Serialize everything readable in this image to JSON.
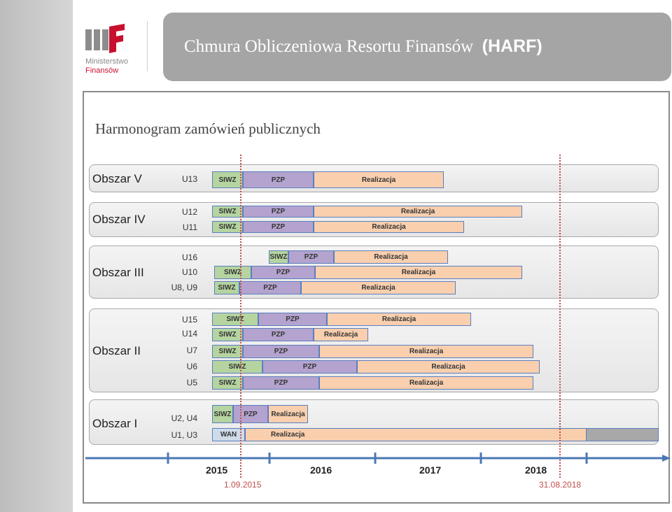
{
  "brand": {
    "line1": "Ministerstwo",
    "line2": "Finansów"
  },
  "header": {
    "title": "Chmura Obliczeniowa Resortu Finansów",
    "abbr": "(HARF)"
  },
  "page_title": "Harmonogram zamówień publicznych",
  "phases": {
    "siwz": "SIWZ",
    "pzp": "PZP",
    "realizacja": "Realizacja",
    "wan": "WAN"
  },
  "areas": [
    {
      "label": "Obszar V",
      "rows": [
        {
          "label": "U13",
          "phases": [
            "SIWZ",
            "PZP",
            "Realizacja"
          ]
        }
      ]
    },
    {
      "label": "Obszar IV",
      "rows": [
        {
          "label": "U12",
          "phases": [
            "SIWZ",
            "PZP",
            "Realizacja"
          ]
        },
        {
          "label": "U11",
          "phases": [
            "SIWZ",
            "PZP",
            "Realizacja"
          ]
        }
      ]
    },
    {
      "label": "Obszar III",
      "rows": [
        {
          "label": "U16",
          "phases": [
            "SIWZ",
            "PZP",
            "Realizacja"
          ]
        },
        {
          "label": "U10",
          "phases": [
            "SIWZ",
            "PZP",
            "Realizacja"
          ]
        },
        {
          "label": "U8, U9",
          "phases": [
            "SIWZ",
            "PZP",
            "Realizacja"
          ]
        }
      ]
    },
    {
      "label": "Obszar II",
      "rows": [
        {
          "label": "U15",
          "phases": [
            "SIWZ",
            "PZP",
            "Realizacja"
          ]
        },
        {
          "label": "U14",
          "phases": [
            "SIWZ",
            "PZP",
            "Realizacja"
          ]
        },
        {
          "label": "U7",
          "phases": [
            "SIWZ",
            "PZP",
            "Realizacja"
          ]
        },
        {
          "label": "U6",
          "phases": [
            "SIWZ",
            "PZP",
            "Realizacja"
          ]
        },
        {
          "label": "U5",
          "phases": [
            "SIWZ",
            "PZP",
            "Realizacja"
          ]
        }
      ]
    },
    {
      "label": "Obszar I",
      "rows": [
        {
          "label": "U2, U4",
          "phases": [
            "SIWZ",
            "PZP",
            "Realizacja"
          ]
        },
        {
          "label": "U1, U3",
          "phases": [
            "WAN",
            "Realizacja"
          ]
        }
      ]
    }
  ],
  "timeline": {
    "years": [
      "2015",
      "2016",
      "2017",
      "2018"
    ],
    "start_marker": "1.09.2015",
    "end_marker": "31.08.2018"
  },
  "colors": {
    "siwz": "#b5d4a0",
    "pzp": "#b4a3ce",
    "realizacja": "#f9cfae",
    "wan": "#cfdbe9",
    "axis": "#4a78b5",
    "marker": "#c0504d",
    "header": "#a5a5a5"
  }
}
